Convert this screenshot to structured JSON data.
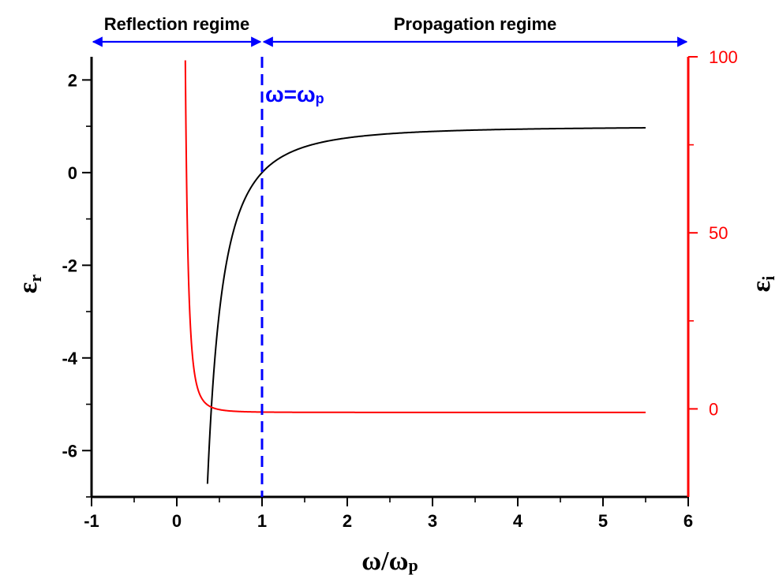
{
  "chart_data": {
    "type": "line",
    "x": {
      "label_main": "ω/ω",
      "label_sub": "p",
      "range": [
        -1,
        6
      ],
      "ticks": [
        -1,
        0,
        1,
        2,
        3,
        4,
        5,
        6
      ]
    },
    "y_left": {
      "label_main": "ε",
      "label_sub": "r",
      "range": [
        -7,
        2.5
      ],
      "ticks": [
        -6,
        -4,
        -2,
        0,
        2
      ]
    },
    "y_right": {
      "label_main": "ε",
      "label_sub": "i",
      "range": [
        -25,
        100
      ],
      "ticks": [
        0,
        50,
        100
      ],
      "color": "#ff0000"
    },
    "series": [
      {
        "axis": "left",
        "color": "#000000",
        "formula": "1 - 1/x^2",
        "x_range": [
          0.36,
          5.5
        ]
      },
      {
        "axis": "right",
        "color": "#ff0000",
        "formula": "0.1/x^3",
        "x_range": [
          0.1,
          5.5
        ],
        "shift": -1
      }
    ],
    "marker": {
      "x": 1,
      "label_main": "ω=ω",
      "label_sub": "p",
      "color": "#0000ff"
    },
    "regimes": [
      {
        "label": "Reflection regime",
        "x_range": [
          -1,
          1
        ],
        "color": "#0000ff"
      },
      {
        "label": "Propagation regime",
        "x_range": [
          1,
          6
        ],
        "color": "#0000ff"
      }
    ],
    "grid": false
  }
}
